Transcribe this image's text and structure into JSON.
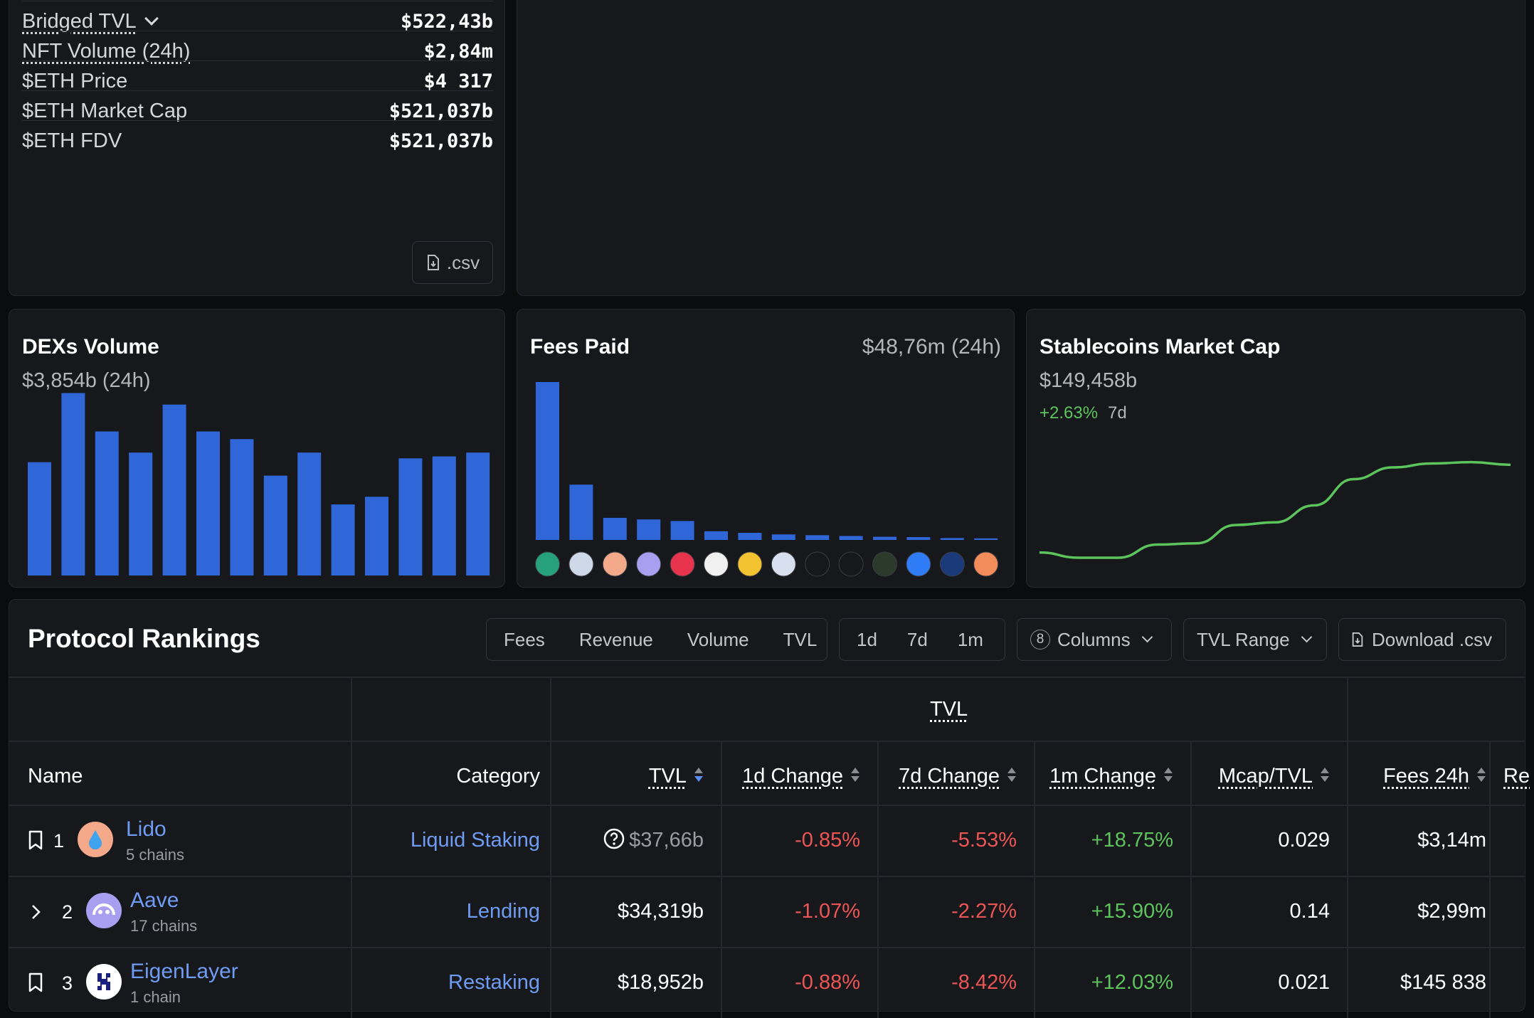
{
  "stats": [
    {
      "label": "Bridged TVL",
      "value": "$522,43b",
      "underline": true,
      "dropdown": true
    },
    {
      "label": "NFT Volume (24h)",
      "value": "$2,84m",
      "underline": true
    },
    {
      "label": "$ETH Price",
      "value": "$4 317"
    },
    {
      "label": "$ETH Market Cap",
      "value": "$521,037b"
    },
    {
      "label": "$ETH FDV",
      "value": "$521,037b"
    }
  ],
  "csv_button": ".csv",
  "dex": {
    "title": "DEXs Volume",
    "subtitle": "$3,854b (24h)"
  },
  "fees": {
    "title": "Fees Paid",
    "amount": "$48,76m (24h)"
  },
  "stablecoins": {
    "title": "Stablecoins Market Cap",
    "value": "$149,458b",
    "change": "+2.63%",
    "period": "7d"
  },
  "chart_data": [
    {
      "type": "bar",
      "title": "DEXs Volume",
      "color": "#2f66d8",
      "values": [
        59,
        95,
        75,
        64,
        89,
        75,
        71,
        52,
        64,
        37,
        41,
        61,
        62,
        64
      ],
      "ylim": [
        0,
        100
      ]
    },
    {
      "type": "bar",
      "title": "Fees Paid",
      "color": "#2f66d8",
      "values": [
        100,
        35,
        14,
        13,
        12,
        5.5,
        4.5,
        3.5,
        3,
        2.5,
        2,
        1.8,
        1.2,
        1
      ],
      "ylim": [
        0,
        100
      ]
    },
    {
      "type": "line",
      "title": "Stablecoins Market Cap",
      "color": "#5cc45c",
      "values": [
        10,
        6,
        6,
        16,
        17,
        31,
        33,
        46,
        66,
        75,
        78,
        79,
        77
      ],
      "ylim": [
        0,
        100
      ]
    }
  ],
  "fee_icons": [
    "tether-icon",
    "circle-icon",
    "lido-icon",
    "aave-icon",
    "pump-icon",
    "jupiter-icon",
    "ethereum-icon",
    "uniswap-icon",
    "arbitrum-icon",
    "chicken-icon",
    "ondo-icon",
    "butterfly-icon",
    "bear-icon",
    "rocket-icon"
  ],
  "rankings": {
    "title": "Protocol Rankings",
    "metric_tabs": [
      "Fees",
      "Revenue",
      "Volume",
      "TVL"
    ],
    "period_tabs": [
      "1d",
      "7d",
      "1m"
    ],
    "columns_count": "8",
    "columns_label": "Columns",
    "tvl_range_label": "TVL Range",
    "download_label": "Download .csv",
    "group_header": "TVL",
    "headers": [
      "Name",
      "Category",
      "TVL",
      "1d Change",
      "7d Change",
      "1m Change",
      "Mcap/TVL",
      "Fees 24h",
      "Re"
    ],
    "rows": [
      {
        "rank": "1",
        "name": "Lido",
        "chains": "5 chains",
        "category": "Liquid Staking",
        "tvl": "$37,66b",
        "d1": "-0.85%",
        "d7": "-5.53%",
        "m1": "+18.75%",
        "mcap_tvl": "0.029",
        "fees": "$3,14m"
      },
      {
        "rank": "2",
        "name": "Aave",
        "chains": "17 chains",
        "category": "Lending",
        "tvl": "$34,319b",
        "d1": "-1.07%",
        "d7": "-2.27%",
        "m1": "+15.90%",
        "mcap_tvl": "0.14",
        "fees": "$2,99m"
      },
      {
        "rank": "3",
        "name": "EigenLayer",
        "chains": "1 chain",
        "category": "Restaking",
        "tvl": "$18,952b",
        "d1": "-0.88%",
        "d7": "-8.42%",
        "m1": "+12.03%",
        "mcap_tvl": "0.021",
        "fees": "$145 838"
      }
    ]
  }
}
